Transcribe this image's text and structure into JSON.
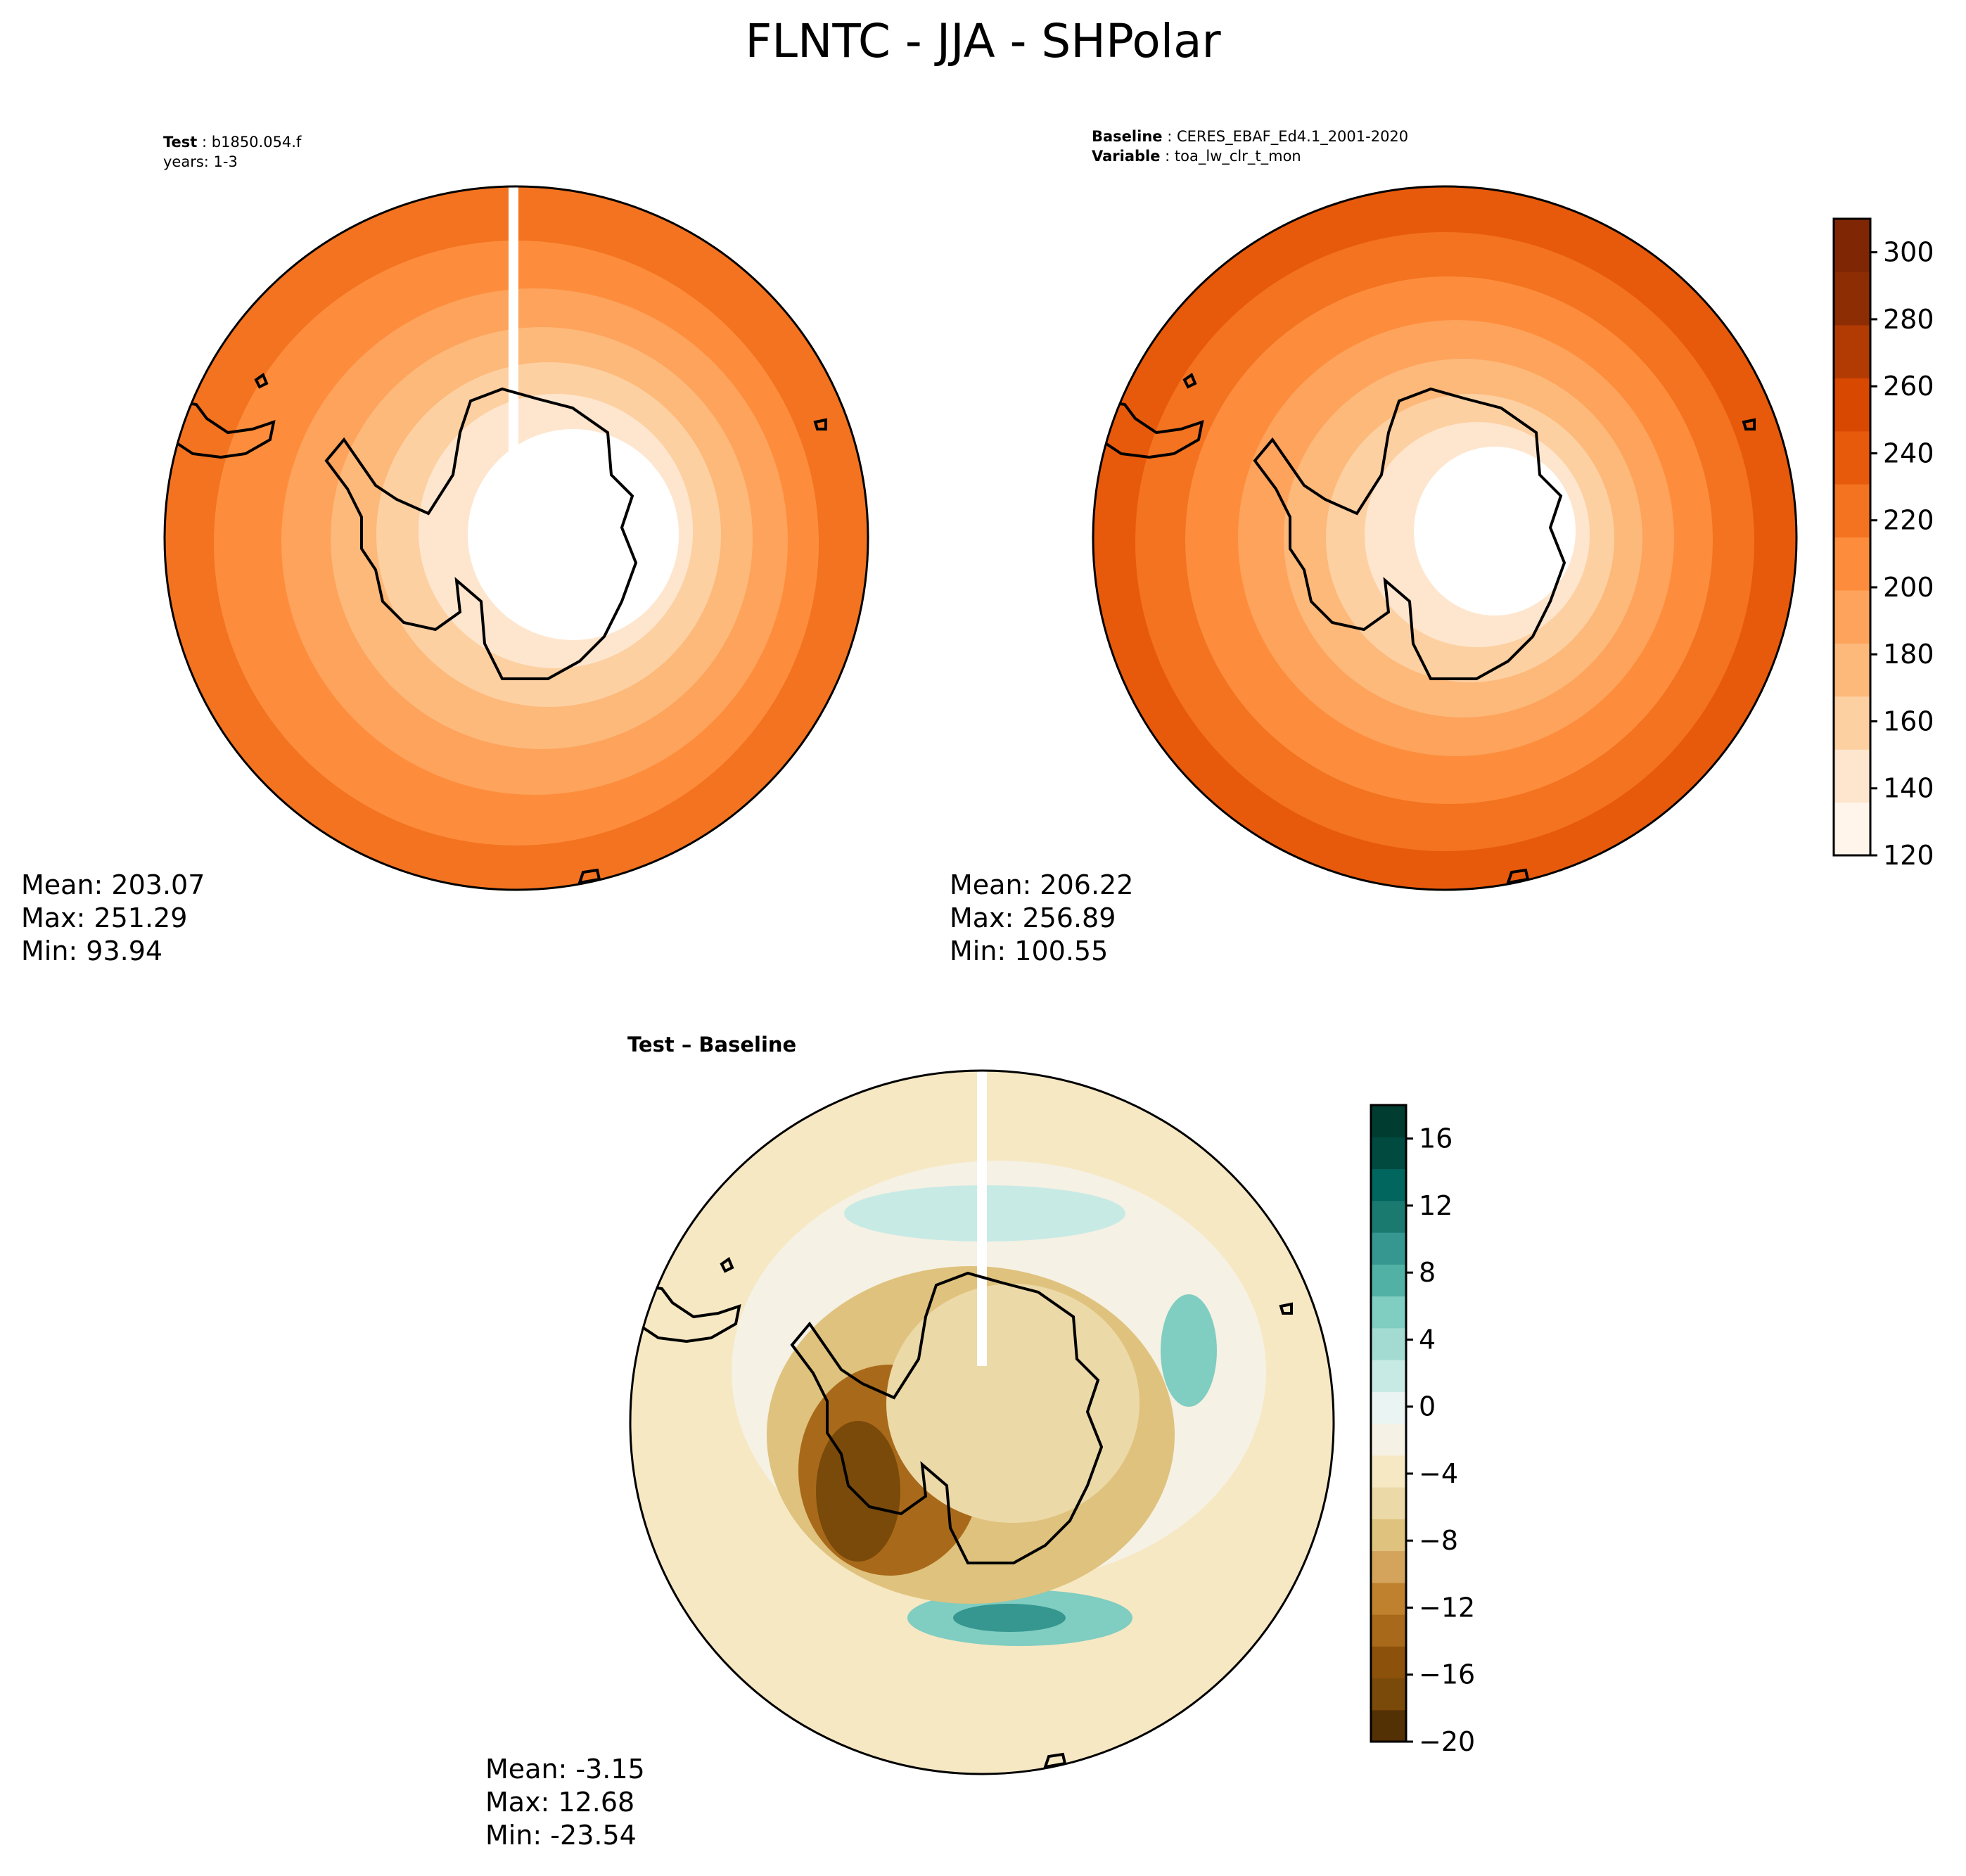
{
  "title": "FLNTC - JJA - SHPolar",
  "test": {
    "label": "Test",
    "case": "b1850.054.f",
    "years": "years: 1-3",
    "mean": "Mean: 203.07",
    "max": "Max: 251.29",
    "min": "Min: 93.94"
  },
  "baseline": {
    "label": "Baseline",
    "case": "CERES_EBAF_Ed4.1_2001-2020",
    "variable_label": "Variable",
    "variable": "toa_lw_clr_t_mon",
    "mean": "Mean: 206.22",
    "max": "Max: 256.89",
    "min": "Min: 100.55"
  },
  "difference": {
    "title": "Test – Baseline",
    "mean": "Mean: -3.15",
    "max": "Max: 12.68",
    "min": "Min: -23.54"
  },
  "colorbar_main": {
    "ticks": [
      "120",
      "140",
      "160",
      "180",
      "200",
      "220",
      "240",
      "260",
      "280",
      "300"
    ],
    "range": [
      120,
      310
    ],
    "colors": [
      "#fff5eb",
      "#fee6ce",
      "#fdd0a2",
      "#fdb97a",
      "#fda35c",
      "#fd8d3c",
      "#f37320",
      "#e85a0b",
      "#d94801",
      "#b23b03",
      "#8c2d04",
      "#7f2704"
    ]
  },
  "colorbar_diff": {
    "ticks": [
      "16",
      "12",
      "8",
      "4",
      "0",
      "−4",
      "−8",
      "−12",
      "−16",
      "−20"
    ],
    "range": [
      -20,
      18
    ],
    "colors": [
      "#543005",
      "#7a4a0b",
      "#8c510a",
      "#a86a1a",
      "#bf812d",
      "#d4a45c",
      "#dfc27d",
      "#ecd9a8",
      "#f6e8c3",
      "#f5f1e4",
      "#eaf4f2",
      "#c7eae5",
      "#a3dbd2",
      "#80cdc1",
      "#52b1a5",
      "#35978f",
      "#1b7a70",
      "#01665e",
      "#004a40",
      "#003c30"
    ]
  }
}
